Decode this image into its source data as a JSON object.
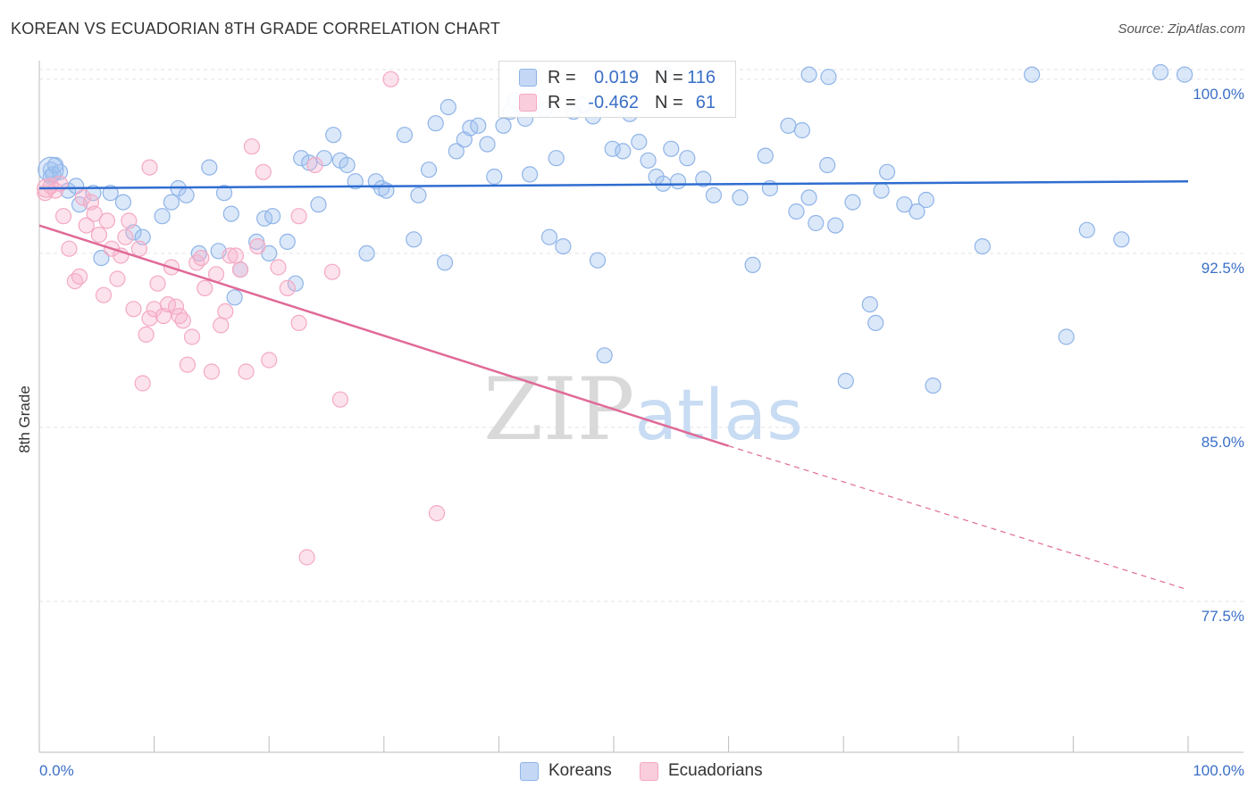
{
  "title": "KOREAN VS ECUADORIAN 8TH GRADE CORRELATION CHART",
  "source": "Source: ZipAtlas.com",
  "watermark": "ZIPatlas",
  "chart_data": {
    "type": "scatter",
    "ylabel": "8th Grade",
    "xlim": [
      0,
      100
    ],
    "ylim": [
      71.0,
      100.8
    ],
    "x_tick_labels": [
      "0.0%",
      "100.0%"
    ],
    "y_ticks": [
      77.5,
      85.0,
      92.5,
      100.0
    ],
    "y_tick_labels": [
      "77.5%",
      "85.0%",
      "92.5%",
      "100.0%"
    ],
    "grid": true,
    "legend_position": "top-center",
    "series": [
      {
        "name": "Koreans",
        "color": "#8fb4e8",
        "line_color": "#2f6dd0",
        "R": "0.019",
        "N": "116",
        "trend": {
          "x": [
            0,
            100
          ],
          "y": [
            95.3,
            95.6
          ]
        },
        "points": [
          [
            1.0,
            96.1
          ],
          [
            1.0,
            95.8
          ],
          [
            1.2,
            95.9
          ],
          [
            1.8,
            96.0
          ],
          [
            2.5,
            95.2
          ],
          [
            3.2,
            95.4
          ],
          [
            3.5,
            94.6
          ],
          [
            4.7,
            95.1
          ],
          [
            5.4,
            92.3
          ],
          [
            6.2,
            95.1
          ],
          [
            7.3,
            94.7
          ],
          [
            8.2,
            93.4
          ],
          [
            9.0,
            93.2
          ],
          [
            10.7,
            94.1
          ],
          [
            11.5,
            94.7
          ],
          [
            12.1,
            95.3
          ],
          [
            12.8,
            95.0
          ],
          [
            13.9,
            92.5
          ],
          [
            14.8,
            96.2
          ],
          [
            15.6,
            92.6
          ],
          [
            16.1,
            95.1
          ],
          [
            16.7,
            94.2
          ],
          [
            17.5,
            91.8
          ],
          [
            17.0,
            90.6
          ],
          [
            18.9,
            93.0
          ],
          [
            19.6,
            94.0
          ],
          [
            20.0,
            92.5
          ],
          [
            20.3,
            94.1
          ],
          [
            21.6,
            93.0
          ],
          [
            22.3,
            91.2
          ],
          [
            22.8,
            96.6
          ],
          [
            23.5,
            96.4
          ],
          [
            24.3,
            94.6
          ],
          [
            24.8,
            96.6
          ],
          [
            25.6,
            97.6
          ],
          [
            26.2,
            96.5
          ],
          [
            26.8,
            96.3
          ],
          [
            27.5,
            95.6
          ],
          [
            28.5,
            92.5
          ],
          [
            29.3,
            95.6
          ],
          [
            29.8,
            95.3
          ],
          [
            30.2,
            95.2
          ],
          [
            31.8,
            97.6
          ],
          [
            32.6,
            93.1
          ],
          [
            33.0,
            95.0
          ],
          [
            33.9,
            96.1
          ],
          [
            34.5,
            98.1
          ],
          [
            35.3,
            92.1
          ],
          [
            35.6,
            98.8
          ],
          [
            36.3,
            96.9
          ],
          [
            37.0,
            97.4
          ],
          [
            37.5,
            97.9
          ],
          [
            38.2,
            98.0
          ],
          [
            39.0,
            97.2
          ],
          [
            39.6,
            95.8
          ],
          [
            40.4,
            98.0
          ],
          [
            41.0,
            98.6
          ],
          [
            41.4,
            99.1
          ],
          [
            42.3,
            98.3
          ],
          [
            42.7,
            95.9
          ],
          [
            44.0,
            98.7
          ],
          [
            44.4,
            93.2
          ],
          [
            45.0,
            96.6
          ],
          [
            45.6,
            92.8
          ],
          [
            46.5,
            98.6
          ],
          [
            47.3,
            98.9
          ],
          [
            48.2,
            98.4
          ],
          [
            48.6,
            92.2
          ],
          [
            49.2,
            88.1
          ],
          [
            49.9,
            97.0
          ],
          [
            50.8,
            96.9
          ],
          [
            51.4,
            98.5
          ],
          [
            52.2,
            97.3
          ],
          [
            53.0,
            96.5
          ],
          [
            53.7,
            95.8
          ],
          [
            54.3,
            95.5
          ],
          [
            55.0,
            97.0
          ],
          [
            55.6,
            95.6
          ],
          [
            56.4,
            96.6
          ],
          [
            57.8,
            95.7
          ],
          [
            58.7,
            95.0
          ],
          [
            61.0,
            94.9
          ],
          [
            62.1,
            92.0
          ],
          [
            63.2,
            96.7
          ],
          [
            63.6,
            95.3
          ],
          [
            65.2,
            98.0
          ],
          [
            65.9,
            94.3
          ],
          [
            66.4,
            97.8
          ],
          [
            67.0,
            94.9
          ],
          [
            67.6,
            93.8
          ],
          [
            68.6,
            96.3
          ],
          [
            69.3,
            93.7
          ],
          [
            70.2,
            87.0
          ],
          [
            70.8,
            94.7
          ],
          [
            72.3,
            90.3
          ],
          [
            72.8,
            89.5
          ],
          [
            73.3,
            95.2
          ],
          [
            73.8,
            96.0
          ],
          [
            75.3,
            94.6
          ],
          [
            76.4,
            94.3
          ],
          [
            77.2,
            94.8
          ],
          [
            77.8,
            86.8
          ],
          [
            82.1,
            92.8
          ],
          [
            89.4,
            88.9
          ],
          [
            91.2,
            93.5
          ],
          [
            94.2,
            93.1
          ],
          [
            57.5,
            100.1
          ],
          [
            54.5,
            100.2
          ],
          [
            67.0,
            100.2
          ],
          [
            68.7,
            100.1
          ],
          [
            86.4,
            100.2
          ],
          [
            97.6,
            100.3
          ],
          [
            99.7,
            100.2
          ],
          [
            1.4,
            96.3
          ]
        ]
      },
      {
        "name": "Ecuadorians",
        "color": "#f4a9c3",
        "line_color": "#e06a97",
        "R": "-0.462",
        "N": "61",
        "trend": {
          "x": [
            0,
            60
          ],
          "y": [
            93.7,
            84.2
          ]
        },
        "trend_dashed": {
          "x": [
            60,
            100
          ],
          "y": [
            84.2,
            78.0
          ]
        },
        "points": [
          [
            0.5,
            95.1
          ],
          [
            1.0,
            95.4
          ],
          [
            1.4,
            95.2
          ],
          [
            1.8,
            95.5
          ],
          [
            2.1,
            94.1
          ],
          [
            2.6,
            92.7
          ],
          [
            3.1,
            91.3
          ],
          [
            3.5,
            91.5
          ],
          [
            3.8,
            94.9
          ],
          [
            4.1,
            93.7
          ],
          [
            4.5,
            94.7
          ],
          [
            4.8,
            94.2
          ],
          [
            5.2,
            93.3
          ],
          [
            5.6,
            90.7
          ],
          [
            5.9,
            93.9
          ],
          [
            6.3,
            92.7
          ],
          [
            6.8,
            91.4
          ],
          [
            7.1,
            92.4
          ],
          [
            7.5,
            93.2
          ],
          [
            7.8,
            93.9
          ],
          [
            8.2,
            90.1
          ],
          [
            8.7,
            92.7
          ],
          [
            9.0,
            86.9
          ],
          [
            9.3,
            89.0
          ],
          [
            9.6,
            89.7
          ],
          [
            10.0,
            90.1
          ],
          [
            10.3,
            91.2
          ],
          [
            10.8,
            89.8
          ],
          [
            11.2,
            90.3
          ],
          [
            11.5,
            91.9
          ],
          [
            11.9,
            90.2
          ],
          [
            12.2,
            89.8
          ],
          [
            12.5,
            89.6
          ],
          [
            12.9,
            87.7
          ],
          [
            13.3,
            88.9
          ],
          [
            13.7,
            92.1
          ],
          [
            14.1,
            92.3
          ],
          [
            14.4,
            91.0
          ],
          [
            15.0,
            87.4
          ],
          [
            15.4,
            91.6
          ],
          [
            15.8,
            89.4
          ],
          [
            16.2,
            90.0
          ],
          [
            16.6,
            92.4
          ],
          [
            17.1,
            92.4
          ],
          [
            17.5,
            91.8
          ],
          [
            18.0,
            87.4
          ],
          [
            18.5,
            97.1
          ],
          [
            19.0,
            92.8
          ],
          [
            19.5,
            96.0
          ],
          [
            20.0,
            87.9
          ],
          [
            20.8,
            91.9
          ],
          [
            21.6,
            91.0
          ],
          [
            22.6,
            94.1
          ],
          [
            22.6,
            89.5
          ],
          [
            23.3,
            79.4
          ],
          [
            24.0,
            96.3
          ],
          [
            25.5,
            91.7
          ],
          [
            26.2,
            86.2
          ],
          [
            34.6,
            81.3
          ],
          [
            30.6,
            100.0
          ],
          [
            9.6,
            96.2
          ]
        ]
      }
    ]
  }
}
